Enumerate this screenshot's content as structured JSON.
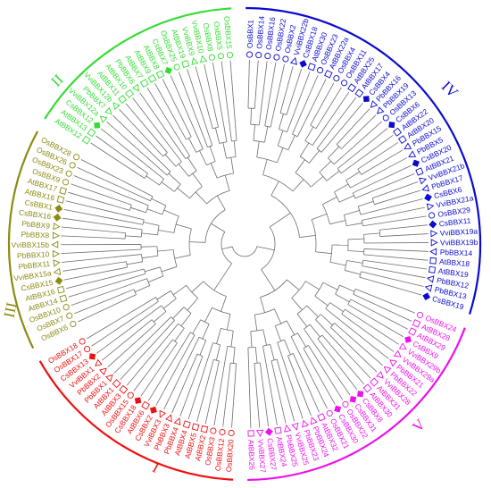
{
  "colors": {
    "branch": "#6e6e6e",
    "I": "#ee1111",
    "II": "#33dd33",
    "III": "#8c8a12",
    "IV": "#0a0ad0",
    "V": "#ee11ee"
  },
  "clade_labels": {
    "I": "I",
    "II": "II",
    "III": "III",
    "IV": "IV",
    "V": "V"
  },
  "clades": [
    {
      "id": "IV",
      "leaves": [
        {
          "name": "OsBBX1",
          "marker": "circle"
        },
        {
          "name": "OsBBX14",
          "marker": "circle"
        },
        {
          "name": "OsBBX16",
          "marker": "circle"
        },
        {
          "name": "OsBBX22",
          "marker": "circle"
        },
        {
          "name": "OsBBX2",
          "marker": "circle"
        },
        {
          "name": "VviBBX22b",
          "marker": "triangle"
        },
        {
          "name": "CsBBX18",
          "marker": "diamond"
        },
        {
          "name": "AtBBX30",
          "marker": "square"
        },
        {
          "name": "OsBBX23",
          "marker": "circle"
        },
        {
          "name": "AtBBX22a",
          "marker": "square"
        },
        {
          "name": "OsBBX4",
          "marker": "circle"
        },
        {
          "name": "OsBBX11",
          "marker": "circle"
        },
        {
          "name": "AtBBX25",
          "marker": "square"
        },
        {
          "name": "AtBBX17",
          "marker": "square"
        },
        {
          "name": "CsBBX4",
          "marker": "diamond"
        },
        {
          "name": "PbBBX16",
          "marker": "tri-down"
        },
        {
          "name": "PbBBX19",
          "marker": "tri-down"
        },
        {
          "name": "OsBBX13",
          "marker": "circle"
        },
        {
          "name": "CsBBX6",
          "marker": "diamond"
        },
        {
          "name": "AtBBX22",
          "marker": "square"
        },
        {
          "name": "AtBBX20",
          "marker": "square"
        },
        {
          "name": "PbBBX15",
          "marker": "tri-down"
        },
        {
          "name": "PbBBX5",
          "marker": "tri-down"
        },
        {
          "name": "CsBBX20",
          "marker": "diamond"
        },
        {
          "name": "AtBBX21",
          "marker": "square"
        },
        {
          "name": "VviBBX21b",
          "marker": "triangle"
        },
        {
          "name": "PbBBX17",
          "marker": "tri-down"
        },
        {
          "name": "CsBBX6",
          "marker": "diamond"
        },
        {
          "name": "VviBBX21a",
          "marker": "triangle"
        },
        {
          "name": "OsBBX29",
          "marker": "circle"
        },
        {
          "name": "CsBBX11",
          "marker": "diamond"
        },
        {
          "name": "VviBBX19a",
          "marker": "triangle"
        },
        {
          "name": "VviBBX19b",
          "marker": "triangle"
        },
        {
          "name": "PbBBX14",
          "marker": "tri-down"
        },
        {
          "name": "AtBBX18",
          "marker": "square"
        },
        {
          "name": "AtBBX19",
          "marker": "square"
        },
        {
          "name": "PbBBX12",
          "marker": "tri-down"
        },
        {
          "name": "PbBBX13",
          "marker": "tri-down"
        },
        {
          "name": "CsBBX19",
          "marker": "diamond"
        }
      ]
    },
    {
      "id": "V",
      "leaves": [
        {
          "name": "OsBBX24",
          "marker": "circle"
        },
        {
          "name": "AtBBX28",
          "marker": "square"
        },
        {
          "name": "AtBBX29",
          "marker": "square"
        },
        {
          "name": "CsBBX9",
          "marker": "diamond"
        },
        {
          "name": "VviBBX29b",
          "marker": "triangle"
        },
        {
          "name": "VviBBX29a",
          "marker": "triangle"
        },
        {
          "name": "PbBBX21",
          "marker": "tri-down"
        },
        {
          "name": "PbBBX22",
          "marker": "tri-down"
        },
        {
          "name": "VviBBX28",
          "marker": "triangle"
        },
        {
          "name": "AtBBX31",
          "marker": "square"
        },
        {
          "name": "AtBBX30",
          "marker": "square"
        },
        {
          "name": "CsBBX8",
          "marker": "diamond"
        },
        {
          "name": "CsBBX31",
          "marker": "diamond"
        },
        {
          "name": "OsBBX22",
          "marker": "circle"
        },
        {
          "name": "CsBBX30",
          "marker": "diamond"
        },
        {
          "name": "OsBBX21",
          "marker": "circle"
        },
        {
          "name": "AtBBX32",
          "marker": "square"
        },
        {
          "name": "PbBBX24",
          "marker": "tri-down"
        },
        {
          "name": "PbBBX23",
          "marker": "tri-down"
        },
        {
          "name": "VviBBX25",
          "marker": "triangle"
        },
        {
          "name": "PbBBX25",
          "marker": "tri-down"
        },
        {
          "name": "AtBBX24",
          "marker": "square"
        },
        {
          "name": "CsBBX27",
          "marker": "diamond"
        },
        {
          "name": "VviBBX27",
          "marker": "triangle"
        },
        {
          "name": "AtBBX26",
          "marker": "square"
        }
      ]
    },
    {
      "id": "I",
      "leaves": [
        {
          "name": "OsBBX20",
          "marker": "circle"
        },
        {
          "name": "OsBBX12",
          "marker": "circle"
        },
        {
          "name": "OsBBX3",
          "marker": "circle"
        },
        {
          "name": "AtBBX2",
          "marker": "square"
        },
        {
          "name": "AtBBX5",
          "marker": "square"
        },
        {
          "name": "AtBBX4",
          "marker": "square"
        },
        {
          "name": "PbBBX4",
          "marker": "tri-down"
        },
        {
          "name": "PbBBX3",
          "marker": "tri-down"
        },
        {
          "name": "VviBBX3",
          "marker": "triangle"
        },
        {
          "name": "CsBBX2",
          "marker": "diamond"
        },
        {
          "name": "AtBBX6",
          "marker": "square"
        },
        {
          "name": "CsBBX18",
          "marker": "diamond"
        },
        {
          "name": "OsBBX15",
          "marker": "circle"
        },
        {
          "name": "AtBBX3",
          "marker": "square"
        },
        {
          "name": "AtBBX1",
          "marker": "square"
        },
        {
          "name": "PbBBX1",
          "marker": "tri-down"
        },
        {
          "name": "PbBBX2",
          "marker": "tri-down"
        },
        {
          "name": "VviBBX1",
          "marker": "triangle"
        },
        {
          "name": "CsBBX13",
          "marker": "diamond"
        },
        {
          "name": "OsBBX17",
          "marker": "circle"
        },
        {
          "name": "OsBBX18",
          "marker": "circle"
        }
      ]
    },
    {
      "id": "III",
      "leaves": [
        {
          "name": "OsBBX6",
          "marker": "circle"
        },
        {
          "name": "OsBBX7",
          "marker": "circle"
        },
        {
          "name": "OsBBX10",
          "marker": "circle"
        },
        {
          "name": "AtBBX14",
          "marker": "square"
        },
        {
          "name": "AtBBX16",
          "marker": "square"
        },
        {
          "name": "CsBBX15",
          "marker": "diamond"
        },
        {
          "name": "VviBBX15a",
          "marker": "triangle"
        },
        {
          "name": "PbBBX11",
          "marker": "tri-down"
        },
        {
          "name": "PbBBX10",
          "marker": "tri-down"
        },
        {
          "name": "VviBBX15b",
          "marker": "triangle"
        },
        {
          "name": "PbBBX8",
          "marker": "tri-down"
        },
        {
          "name": "PbBBX9",
          "marker": "tri-down"
        },
        {
          "name": "CsBBX16",
          "marker": "diamond"
        },
        {
          "name": "CsBBX1",
          "marker": "diamond"
        },
        {
          "name": "AtBBX16",
          "marker": "square"
        },
        {
          "name": "AtBBX17",
          "marker": "square"
        },
        {
          "name": "OsBBX9",
          "marker": "circle"
        },
        {
          "name": "OsBBX23",
          "marker": "circle"
        },
        {
          "name": "OsBBX26",
          "marker": "circle"
        },
        {
          "name": "OsBBX28",
          "marker": "circle"
        }
      ]
    },
    {
      "id": "II",
      "leaves": [
        {
          "name": "AtBBX12",
          "marker": "square"
        },
        {
          "name": "AtBBX13",
          "marker": "square"
        },
        {
          "name": "CsBBX12",
          "marker": "diamond"
        },
        {
          "name": "VviBBX12a",
          "marker": "triangle"
        },
        {
          "name": "PbBBX7",
          "marker": "tri-down"
        },
        {
          "name": "VviBBX12b",
          "marker": "triangle"
        },
        {
          "name": "AtBBX11",
          "marker": "square"
        },
        {
          "name": "AtBBX10",
          "marker": "square"
        },
        {
          "name": "PbBBX6",
          "marker": "tri-down"
        },
        {
          "name": "AtBBX7",
          "marker": "square"
        },
        {
          "name": "AtBBX9",
          "marker": "square"
        },
        {
          "name": "AtBBX8",
          "marker": "square"
        },
        {
          "name": "CsBBX7",
          "marker": "diamond"
        },
        {
          "name": "OsBBX25",
          "marker": "circle"
        },
        {
          "name": "AtBBX19",
          "marker": "square"
        },
        {
          "name": "VviBBX9",
          "marker": "triangle"
        },
        {
          "name": "VviBBX10",
          "marker": "triangle"
        },
        {
          "name": "OsBBX8",
          "marker": "circle"
        },
        {
          "name": "OsBBX5",
          "marker": "circle"
        },
        {
          "name": "OsBBX15",
          "marker": "circle"
        }
      ]
    }
  ]
}
